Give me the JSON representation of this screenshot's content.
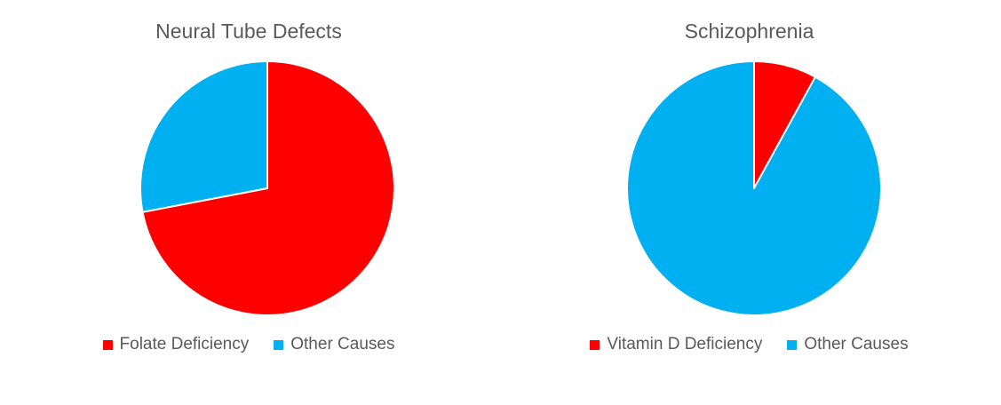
{
  "chart_data": [
    {
      "type": "pie",
      "title": "Neural Tube Defects",
      "categories": [
        "Folate Deficiency",
        "Other Causes"
      ],
      "values": [
        72,
        28
      ],
      "colors": [
        "#ff0000",
        "#00b0f0"
      ],
      "start_angle_deg": 0,
      "direction": "clockwise",
      "legend_position": "bottom"
    },
    {
      "type": "pie",
      "title": "Schizophrenia",
      "categories": [
        "Vitamin D Deficiency",
        "Other Causes"
      ],
      "values": [
        8,
        92
      ],
      "colors": [
        "#ff0000",
        "#00b0f0"
      ],
      "start_angle_deg": 0,
      "direction": "clockwise",
      "legend_position": "bottom"
    }
  ]
}
